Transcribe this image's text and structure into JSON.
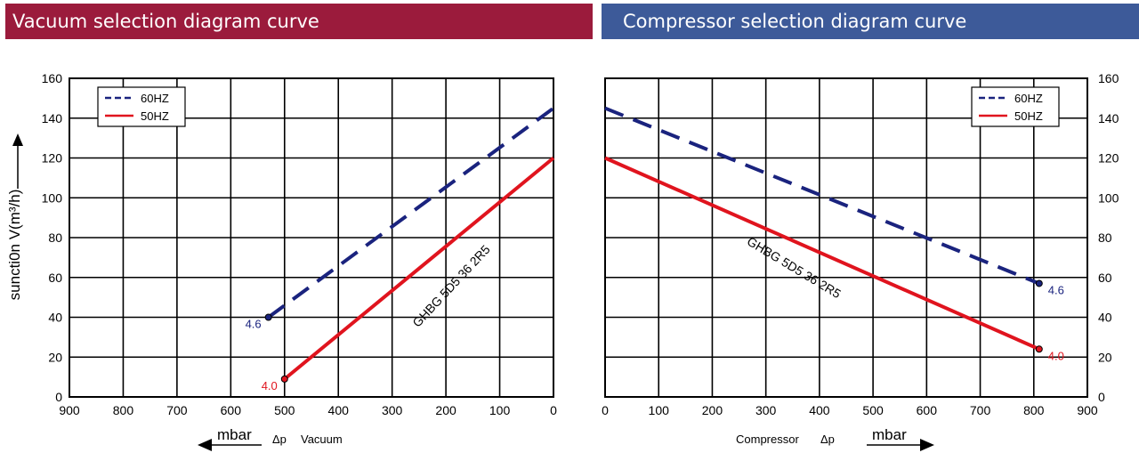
{
  "chart_data": [
    {
      "type": "line",
      "title": "Vacuum selection diagram curve",
      "ylabel": "suncti0n V(m³/h)",
      "xlabel": "mbar",
      "xlabel_extra": "Δp",
      "xlabel_extra2": "Vacuum",
      "annotation": "GHBG 5D5 36 2R5",
      "x_ticks": [
        "900",
        "800",
        "700",
        "600",
        "500",
        "400",
        "300",
        "200",
        "100",
        "0"
      ],
      "y_ticks": [
        "0",
        "20",
        "40",
        "60",
        "80",
        "100",
        "120",
        "140",
        "160"
      ],
      "xlim": [
        900,
        0
      ],
      "ylim": [
        0,
        160
      ],
      "grid": true,
      "legend_position": "top-left",
      "series": [
        {
          "name": "60HZ",
          "style": "dashed",
          "color": "#1a237e",
          "points": [
            [
              530,
              40
            ],
            [
              0,
              145
            ]
          ],
          "end_label": "4.6"
        },
        {
          "name": "50HZ",
          "style": "solid",
          "color": "#e0141e",
          "points": [
            [
              500,
              9
            ],
            [
              0,
              120
            ]
          ],
          "end_label": "4.0"
        }
      ]
    },
    {
      "type": "line",
      "title": "Compressor selection diagram curve",
      "xlabel": "mbar",
      "xlabel_extra": "Compressor",
      "xlabel_extra2": "Δp",
      "annotation": "GHBG 5D5 36 2R5",
      "x_ticks": [
        "0",
        "100",
        "200",
        "300",
        "400",
        "500",
        "600",
        "700",
        "800",
        "900"
      ],
      "y_ticks": [
        "0",
        "20",
        "40",
        "60",
        "80",
        "100",
        "120",
        "140",
        "160"
      ],
      "xlim": [
        0,
        900
      ],
      "ylim": [
        0,
        160
      ],
      "grid": true,
      "legend_position": "top-right",
      "series": [
        {
          "name": "60HZ",
          "style": "dashed",
          "color": "#1a237e",
          "points": [
            [
              0,
              145
            ],
            [
              810,
              57
            ]
          ],
          "end_label": "4.6"
        },
        {
          "name": "50HZ",
          "style": "solid",
          "color": "#e0141e",
          "points": [
            [
              0,
              120
            ],
            [
              810,
              24
            ]
          ],
          "end_label": "4.0"
        }
      ]
    }
  ]
}
